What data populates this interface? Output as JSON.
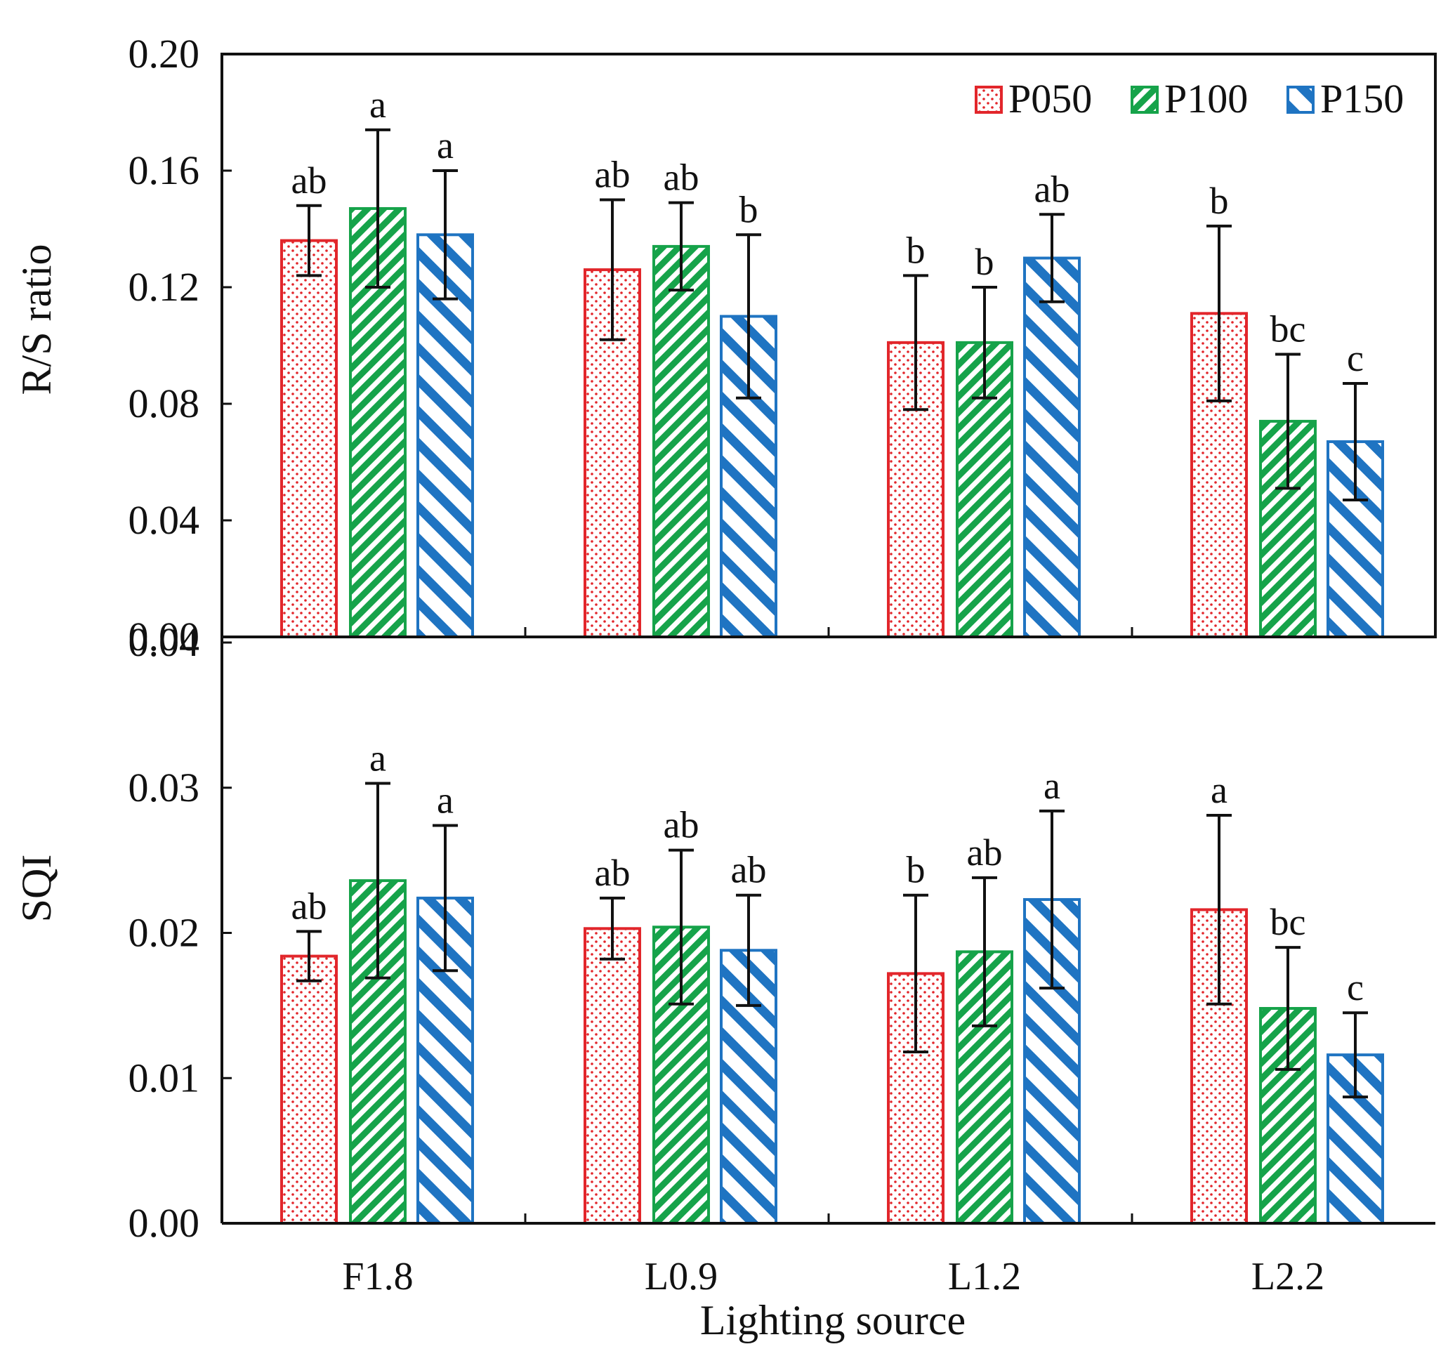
{
  "colors": {
    "P050": "#e2262b",
    "P100": "#16a34a",
    "P150": "#1f74c2",
    "errorbar": "#111111",
    "axis": "#111111"
  },
  "chart_data": [
    {
      "type": "bar",
      "id": "top",
      "ylabel": "R/S ratio",
      "ylim": [
        0,
        0.2
      ],
      "yticks": [
        "0.00",
        "0.04",
        "0.08",
        "0.12",
        "0.16",
        "0.20"
      ],
      "ytick_values": [
        0,
        0.04,
        0.08,
        0.12,
        0.16,
        0.2
      ],
      "categories": [
        "F1.8",
        "L0.9",
        "L1.2",
        "L2.2"
      ],
      "legend": [
        "P050",
        "P100",
        "P150"
      ],
      "legend_position": "top-right",
      "series": [
        {
          "name": "P050",
          "values": [
            0.136,
            0.126,
            0.101,
            0.111
          ],
          "errors": [
            0.012,
            0.024,
            0.023,
            0.03
          ],
          "letters": [
            "ab",
            "ab",
            "b",
            "b"
          ]
        },
        {
          "name": "P100",
          "values": [
            0.147,
            0.134,
            0.101,
            0.074
          ],
          "errors": [
            0.027,
            0.015,
            0.019,
            0.023
          ],
          "letters": [
            "a",
            "ab",
            "b",
            "bc"
          ]
        },
        {
          "name": "P150",
          "values": [
            0.138,
            0.11,
            0.13,
            0.067
          ],
          "errors": [
            0.022,
            0.028,
            0.015,
            0.02
          ],
          "letters": [
            "a",
            "b",
            "ab",
            "c"
          ]
        }
      ]
    },
    {
      "type": "bar",
      "id": "bottom",
      "ylabel": "SQI",
      "xlabel": "Lighting source",
      "ylim": [
        0,
        0.04
      ],
      "yticks": [
        "0.00",
        "0.01",
        "0.02",
        "0.03",
        "0.04"
      ],
      "ytick_values": [
        0,
        0.01,
        0.02,
        0.03,
        0.04
      ],
      "categories": [
        "F1.8",
        "L0.9",
        "L1.2",
        "L2.2"
      ],
      "series": [
        {
          "name": "P050",
          "values": [
            0.0184,
            0.0203,
            0.0172,
            0.0216
          ],
          "errors": [
            0.0017,
            0.0021,
            0.0054,
            0.0065
          ],
          "letters": [
            "ab",
            "ab",
            "b",
            "a"
          ]
        },
        {
          "name": "P100",
          "values": [
            0.0236,
            0.0204,
            0.0187,
            0.0148
          ],
          "errors": [
            0.0067,
            0.0053,
            0.0051,
            0.0042
          ],
          "letters": [
            "a",
            "ab",
            "ab",
            "bc"
          ]
        },
        {
          "name": "P150",
          "values": [
            0.0224,
            0.0188,
            0.0223,
            0.0116
          ],
          "errors": [
            0.005,
            0.0038,
            0.0061,
            0.0029
          ],
          "letters": [
            "a",
            "ab",
            "a",
            "c"
          ]
        }
      ]
    }
  ]
}
